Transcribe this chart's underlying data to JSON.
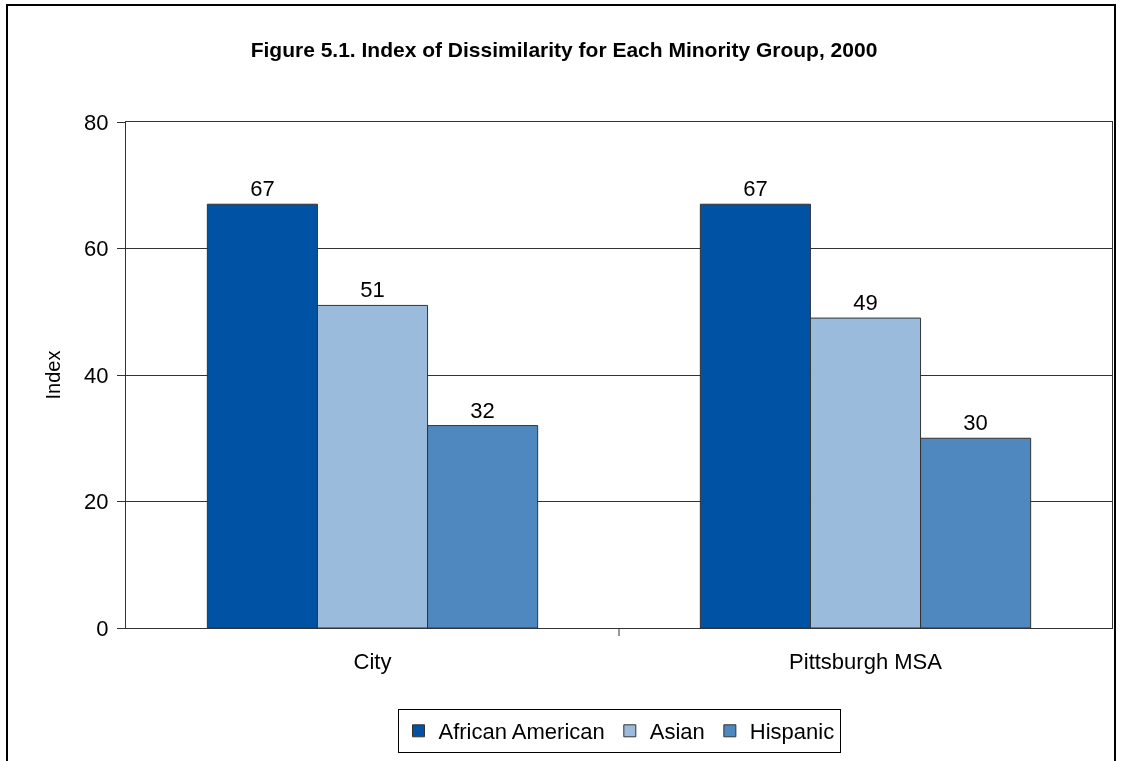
{
  "chart_data": {
    "type": "bar",
    "title": "Figure 5.1. Index of Dissimilarity for Each Minority Group, 2000",
    "ylabel": "Index",
    "categories": [
      "City",
      "Pittsburgh MSA"
    ],
    "series": [
      {
        "name": "African American",
        "color": "#0053a4",
        "values": [
          67,
          67
        ]
      },
      {
        "name": "Asian",
        "color": "#9bbbdd",
        "values": [
          51,
          49
        ]
      },
      {
        "name": "Hispanic",
        "color": "#4f87bf",
        "values": [
          32,
          30
        ]
      }
    ],
    "ylim": [
      0,
      80
    ],
    "yticks": [
      0,
      20,
      40,
      60,
      80
    ],
    "grid": "y",
    "legend": "bottom",
    "data_labels": true
  }
}
